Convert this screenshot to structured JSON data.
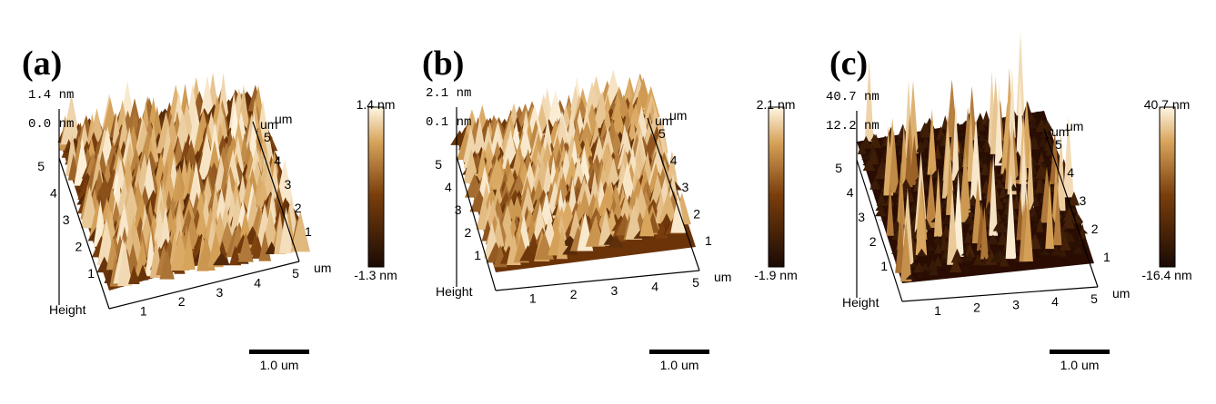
{
  "panels": [
    {
      "label": "(a)",
      "z_top": "1.4",
      "z_mid": "0.0",
      "z_unit": "nm",
      "colorbar_max": "1.4 nm",
      "colorbar_min": "-1.3 nm",
      "axis_ticks": [
        "1",
        "2",
        "3",
        "4",
        "5"
      ],
      "axis_unit": "um",
      "height_label": "Height",
      "scale_bar_label": "1.0 um",
      "surface_style": "dense uniform"
    },
    {
      "label": "(b)",
      "z_top": "2.1",
      "z_mid": "0.1",
      "z_unit": "nm",
      "colorbar_max": "2.1 nm",
      "colorbar_min": "-1.9 nm",
      "axis_ticks": [
        "1",
        "2",
        "3",
        "4",
        "5"
      ],
      "axis_unit": "um",
      "height_label": "Height",
      "scale_bar_label": "1.0 um",
      "surface_style": "dense uniform"
    },
    {
      "label": "(c)",
      "z_top": "40.7",
      "z_mid": "12.2",
      "z_unit": "nm",
      "colorbar_max": "40.7 nm",
      "colorbar_min": "-16.4 nm",
      "axis_ticks": [
        "1",
        "2",
        "3",
        "4",
        "5"
      ],
      "axis_unit": "um",
      "height_label": "Height",
      "scale_bar_label": "1.0 um",
      "surface_style": "sparse tall peaks"
    }
  ],
  "colors": {
    "afm_dark": "#1a0a04",
    "afm_mid": "#7a3e0c",
    "afm_light": "#d7a35a",
    "afm_peak": "#fff6e3"
  }
}
